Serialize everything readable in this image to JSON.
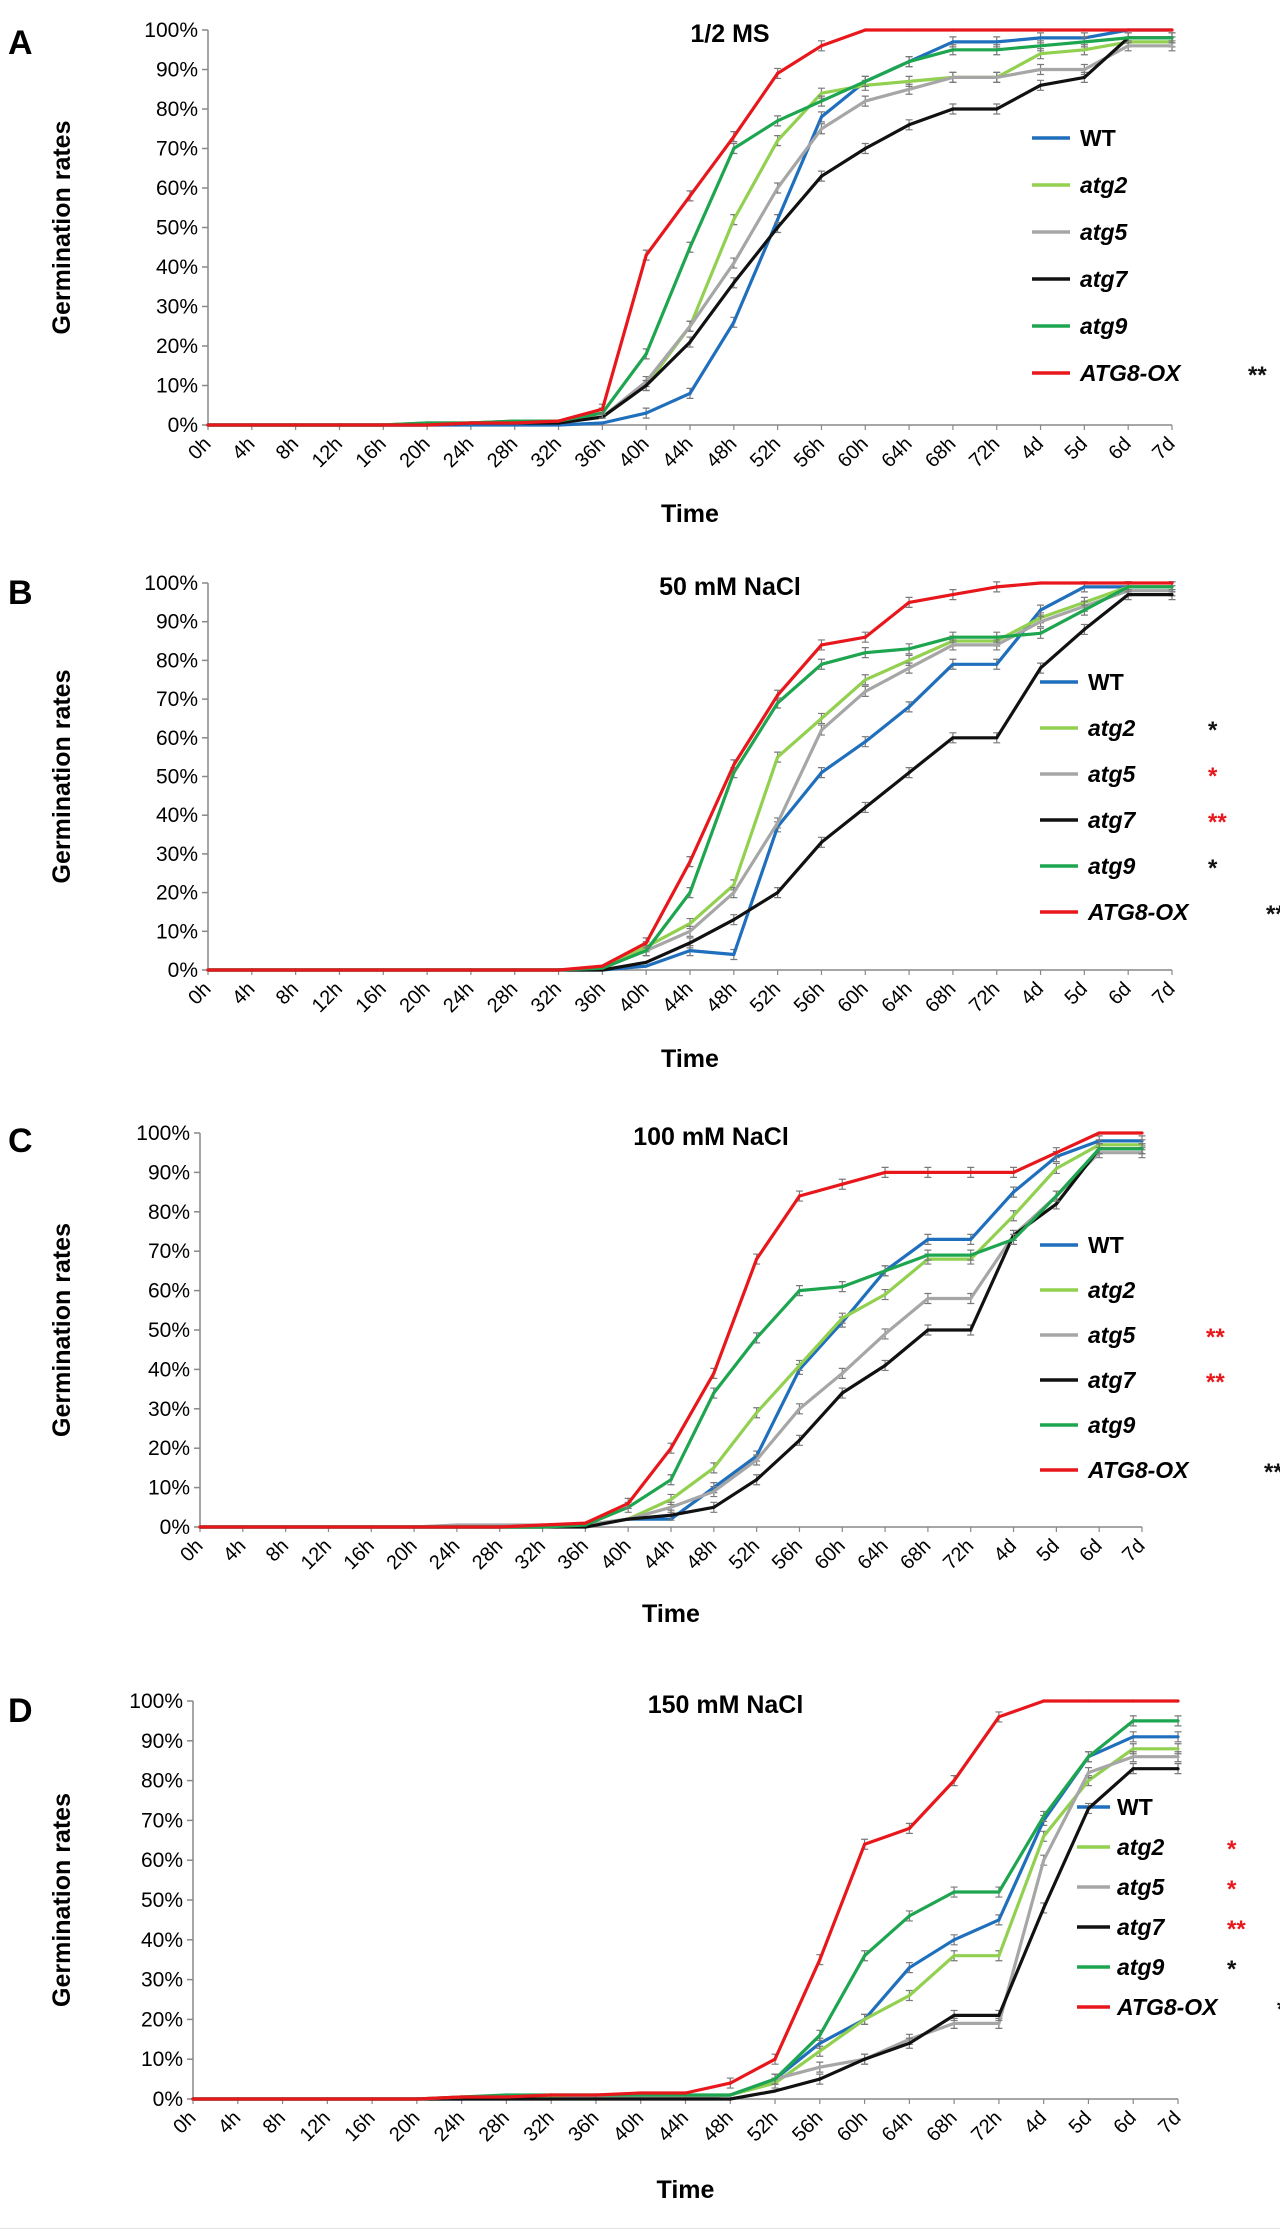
{
  "figure": {
    "categories": [
      "0h",
      "4h",
      "8h",
      "12h",
      "16h",
      "20h",
      "24h",
      "28h",
      "32h",
      "36h",
      "40h",
      "44h",
      "48h",
      "52h",
      "56h",
      "60h",
      "64h",
      "68h",
      "72h",
      "4d",
      "5d",
      "6d",
      "7d"
    ],
    "y_ticks": [
      "0%",
      "10%",
      "20%",
      "30%",
      "40%",
      "50%",
      "60%",
      "70%",
      "80%",
      "90%",
      "100%"
    ],
    "xlabel": "Time",
    "ylabel": "Germination rates"
  },
  "series_colors": {
    "WT": "#1f6fbd",
    "atg2": "#92d050",
    "atg5": "#a6a6a6",
    "atg7": "#111111",
    "atg9": "#1ea54f",
    "ATG8-OX": "#e8171b"
  },
  "chart_data": [
    {
      "type": "line",
      "panel_label": "A",
      "title": "1/2 MS",
      "xlabel": "Time",
      "ylabel": "Germination rates",
      "ylim": [
        0,
        100
      ],
      "categories": [
        "0h",
        "4h",
        "8h",
        "12h",
        "16h",
        "20h",
        "24h",
        "28h",
        "32h",
        "36h",
        "40h",
        "44h",
        "48h",
        "52h",
        "56h",
        "60h",
        "64h",
        "68h",
        "72h",
        "4d",
        "5d",
        "6d",
        "7d"
      ],
      "series": [
        {
          "name": "WT",
          "italic": false,
          "mark": "",
          "mark_color": "",
          "values": [
            0,
            0,
            0,
            0,
            0,
            0,
            0,
            0,
            0,
            0.5,
            3,
            8,
            26,
            52,
            78,
            87,
            92,
            97,
            97,
            98,
            98,
            100,
            100
          ]
        },
        {
          "name": "atg2",
          "italic": true,
          "mark": "",
          "mark_color": "",
          "values": [
            0,
            0,
            0,
            0,
            0,
            0.5,
            0.5,
            1,
            1,
            2,
            10,
            25,
            52,
            72,
            84,
            86,
            87,
            88,
            88,
            94,
            95,
            97,
            97
          ]
        },
        {
          "name": "atg5",
          "italic": true,
          "mark": "",
          "mark_color": "",
          "values": [
            0,
            0,
            0,
            0,
            0,
            0.5,
            0.5,
            1,
            1,
            2,
            11,
            25,
            41,
            60,
            75,
            82,
            85,
            88,
            88,
            90,
            90,
            96,
            96
          ]
        },
        {
          "name": "atg7",
          "italic": true,
          "mark": "",
          "mark_color": "",
          "values": [
            0,
            0,
            0,
            0,
            0,
            0,
            0.5,
            0.5,
            0.5,
            2,
            10,
            21,
            36,
            50,
            63,
            70,
            76,
            80,
            80,
            86,
            88,
            98,
            98
          ]
        },
        {
          "name": "atg9",
          "italic": true,
          "mark": "",
          "mark_color": "",
          "values": [
            0,
            0,
            0,
            0,
            0,
            0.5,
            0.5,
            1,
            1,
            3,
            18,
            45,
            70,
            77,
            82,
            87,
            92,
            95,
            95,
            96,
            97,
            98,
            98
          ]
        },
        {
          "name": "ATG8-OX",
          "italic": true,
          "mark": "**",
          "mark_color": "#111111",
          "values": [
            0,
            0,
            0,
            0,
            0,
            0,
            0.5,
            0.5,
            1,
            4,
            43,
            58,
            73,
            89,
            96,
            100,
            100,
            100,
            100,
            100,
            100,
            100,
            100
          ]
        }
      ]
    },
    {
      "type": "line",
      "panel_label": "B",
      "title": "50 mM NaCl",
      "xlabel": "Time",
      "ylabel": "Germination rates",
      "ylim": [
        0,
        100
      ],
      "categories": [
        "0h",
        "4h",
        "8h",
        "12h",
        "16h",
        "20h",
        "24h",
        "28h",
        "32h",
        "36h",
        "40h",
        "44h",
        "48h",
        "52h",
        "56h",
        "60h",
        "64h",
        "68h",
        "72h",
        "4d",
        "5d",
        "6d",
        "7d"
      ],
      "series": [
        {
          "name": "WT",
          "italic": false,
          "mark": "",
          "mark_color": "",
          "values": [
            0,
            0,
            0,
            0,
            0,
            0,
            0,
            0,
            0,
            0,
            1,
            5,
            4,
            37,
            51,
            59,
            68,
            79,
            79,
            93,
            99,
            99,
            99
          ]
        },
        {
          "name": "atg2",
          "italic": true,
          "mark": "*",
          "mark_color": "#111111",
          "values": [
            0,
            0,
            0,
            0,
            0,
            0,
            0,
            0,
            0,
            0.5,
            6,
            12,
            22,
            55,
            65,
            75,
            80,
            85,
            85,
            91,
            95,
            99,
            99
          ]
        },
        {
          "name": "atg5",
          "italic": true,
          "mark": "*",
          "mark_color": "#e8171b",
          "values": [
            0,
            0,
            0,
            0,
            0,
            0,
            0,
            0,
            0,
            0.5,
            5,
            10,
            20,
            38,
            62,
            72,
            78,
            84,
            84,
            90,
            94,
            98,
            98
          ]
        },
        {
          "name": "atg7",
          "italic": true,
          "mark": "**",
          "mark_color": "#e8171b",
          "values": [
            0,
            0,
            0,
            0,
            0,
            0,
            0,
            0,
            0,
            0,
            2,
            7,
            13,
            20,
            33,
            42,
            51,
            60,
            60,
            78,
            88,
            97,
            97
          ]
        },
        {
          "name": "atg9",
          "italic": true,
          "mark": "*",
          "mark_color": "#111111",
          "values": [
            0,
            0,
            0,
            0,
            0,
            0,
            0,
            0,
            0,
            0.5,
            5,
            20,
            51,
            69,
            79,
            82,
            83,
            86,
            86,
            87,
            93,
            99,
            99
          ]
        },
        {
          "name": "ATG8-OX",
          "italic": true,
          "mark": "**",
          "mark_color": "#111111",
          "values": [
            0,
            0,
            0,
            0,
            0,
            0,
            0,
            0,
            0,
            1,
            7,
            28,
            53,
            71,
            84,
            86,
            95,
            97,
            99,
            100,
            100,
            100,
            100
          ]
        }
      ]
    },
    {
      "type": "line",
      "panel_label": "C",
      "title": "100 mM NaCl",
      "xlabel": "Time",
      "ylabel": "Germination rates",
      "ylim": [
        0,
        100
      ],
      "categories": [
        "0h",
        "4h",
        "8h",
        "12h",
        "16h",
        "20h",
        "24h",
        "28h",
        "32h",
        "36h",
        "40h",
        "44h",
        "48h",
        "52h",
        "56h",
        "60h",
        "64h",
        "68h",
        "72h",
        "4d",
        "5d",
        "6d",
        "7d"
      ],
      "series": [
        {
          "name": "WT",
          "italic": false,
          "mark": "",
          "mark_color": "",
          "values": [
            0,
            0,
            0,
            0,
            0,
            0,
            0,
            0,
            0,
            0.5,
            2,
            2,
            10,
            18,
            40,
            52,
            65,
            73,
            73,
            85,
            94,
            98,
            98
          ]
        },
        {
          "name": "atg2",
          "italic": true,
          "mark": "",
          "mark_color": "",
          "values": [
            0,
            0,
            0,
            0,
            0,
            0,
            0,
            0,
            0,
            0.5,
            2,
            7,
            15,
            29,
            41,
            53,
            59,
            68,
            68,
            79,
            91,
            97,
            97
          ]
        },
        {
          "name": "atg5",
          "italic": true,
          "mark": "**",
          "mark_color": "#e8171b",
          "values": [
            0,
            0,
            0,
            0,
            0,
            0,
            0.5,
            0.5,
            0.5,
            0.5,
            2,
            5,
            9,
            17,
            30,
            39,
            49,
            58,
            58,
            74,
            84,
            95,
            95
          ]
        },
        {
          "name": "atg7",
          "italic": true,
          "mark": "**",
          "mark_color": "#e8171b",
          "values": [
            0,
            0,
            0,
            0,
            0,
            0,
            0,
            0,
            0,
            0,
            2,
            3,
            5,
            12,
            22,
            34,
            41,
            50,
            50,
            74,
            82,
            96,
            96
          ]
        },
        {
          "name": "atg9",
          "italic": true,
          "mark": "",
          "mark_color": "",
          "values": [
            0,
            0,
            0,
            0,
            0,
            0,
            0,
            0,
            0,
            0.5,
            5,
            12,
            34,
            48,
            60,
            61,
            65,
            69,
            69,
            73,
            84,
            96,
            96
          ]
        },
        {
          "name": "ATG8-OX",
          "italic": true,
          "mark": "**",
          "mark_color": "#111111",
          "values": [
            0,
            0,
            0,
            0,
            0,
            0,
            0,
            0,
            0.5,
            1,
            6,
            20,
            39,
            68,
            84,
            87,
            90,
            90,
            90,
            90,
            95,
            100,
            100
          ]
        }
      ]
    },
    {
      "type": "line",
      "panel_label": "D",
      "title": "150 mM NaCl",
      "xlabel": "Time",
      "ylabel": "Germination rates",
      "ylim": [
        0,
        100
      ],
      "categories": [
        "0h",
        "4h",
        "8h",
        "12h",
        "16h",
        "20h",
        "24h",
        "28h",
        "32h",
        "36h",
        "40h",
        "44h",
        "48h",
        "52h",
        "56h",
        "60h",
        "64h",
        "68h",
        "72h",
        "4d",
        "5d",
        "6d",
        "7d"
      ],
      "series": [
        {
          "name": "WT",
          "italic": false,
          "mark": "",
          "mark_color": "",
          "values": [
            0,
            0,
            0,
            0,
            0,
            0,
            0,
            0.5,
            0.5,
            0.5,
            0.5,
            0.5,
            1,
            5,
            14,
            20,
            33,
            40,
            45,
            70,
            86,
            91,
            91
          ]
        },
        {
          "name": "atg2",
          "italic": true,
          "mark": "*",
          "mark_color": "#e8171b",
          "values": [
            0,
            0,
            0,
            0,
            0,
            0,
            0.5,
            0.5,
            0.5,
            0.5,
            0.5,
            0.5,
            1,
            4,
            12,
            20,
            26,
            36,
            36,
            66,
            80,
            88,
            88
          ]
        },
        {
          "name": "atg5",
          "italic": true,
          "mark": "*",
          "mark_color": "#e8171b",
          "values": [
            0,
            0,
            0,
            0,
            0,
            0,
            0,
            0,
            0,
            0.5,
            0.5,
            0.5,
            1,
            5,
            8,
            10,
            15,
            19,
            19,
            60,
            82,
            86,
            86
          ]
        },
        {
          "name": "atg7",
          "italic": true,
          "mark": "**",
          "mark_color": "#e8171b",
          "values": [
            0,
            0,
            0,
            0,
            0,
            0,
            0,
            0,
            0,
            0,
            0,
            0,
            0,
            2,
            5,
            10,
            14,
            21,
            21,
            48,
            73,
            83,
            83
          ]
        },
        {
          "name": "atg9",
          "italic": true,
          "mark": "*",
          "mark_color": "#111111",
          "values": [
            0,
            0,
            0,
            0,
            0,
            0,
            0.5,
            1,
            1,
            1,
            1,
            1,
            1,
            5,
            16,
            36,
            46,
            52,
            52,
            71,
            86,
            95,
            95
          ]
        },
        {
          "name": "ATG8-OX",
          "italic": true,
          "mark": "**",
          "mark_color": "#111111",
          "values": [
            0,
            0,
            0,
            0,
            0,
            0,
            0.5,
            0.5,
            1,
            1,
            1.5,
            1.5,
            4,
            10,
            35,
            64,
            68,
            80,
            96,
            100,
            100,
            100,
            100
          ]
        }
      ]
    }
  ]
}
